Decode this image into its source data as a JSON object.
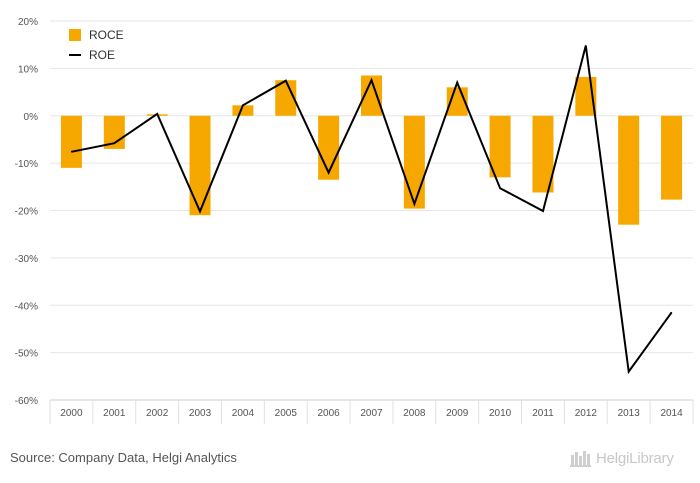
{
  "chart_data": {
    "type": "bar",
    "categories": [
      "2000",
      "2001",
      "2002",
      "2003",
      "2004",
      "2005",
      "2006",
      "2007",
      "2008",
      "2009",
      "2010",
      "2011",
      "2012",
      "2013",
      "2014"
    ],
    "series": [
      {
        "name": "ROCE",
        "type": "bar",
        "color": "#f7a800",
        "values": [
          -11,
          -7,
          0.3,
          -21,
          2.2,
          7.5,
          -13.5,
          8.5,
          -19.6,
          6,
          -13,
          -16.2,
          8.2,
          -23,
          -17.7
        ]
      },
      {
        "name": "ROE",
        "type": "line",
        "color": "#000000",
        "values": [
          -7.6,
          -5.8,
          0.4,
          -20.2,
          2.2,
          7.4,
          -12,
          7.5,
          -18.6,
          7,
          -15.3,
          -20.1,
          14.8,
          -54,
          -41.5
        ]
      }
    ],
    "y_ticks": [
      "20%",
      "10%",
      "0%",
      "-10%",
      "-20%",
      "-30%",
      "-40%",
      "-50%",
      "-60%"
    ],
    "ylim": [
      -60,
      20
    ],
    "legend_position": "top-left",
    "grid": true
  },
  "footer": {
    "source": "Source: Company Data, Helgi Analytics",
    "brand": "HelgiLibrary"
  }
}
